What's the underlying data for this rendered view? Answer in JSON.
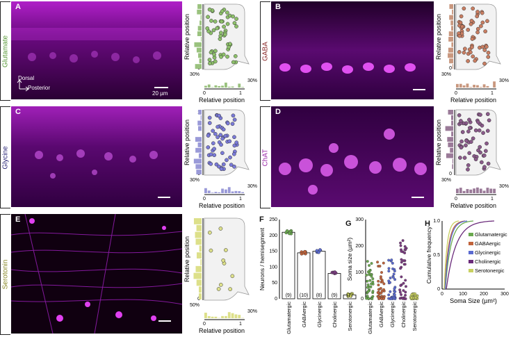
{
  "panels": [
    {
      "letter": "A",
      "marker": "Glutamate",
      "color": "#5a9a3a",
      "fill": "#8dc06a",
      "histfill": "#9ac27e"
    },
    {
      "letter": "B",
      "marker": "GABA",
      "color": "#8a2a2a",
      "fill": "#c97e62",
      "histfill": "#c9987f"
    },
    {
      "letter": "C",
      "marker": "Glycine",
      "color": "#2e2a7a",
      "fill": "#7a7ad8",
      "histfill": "#9a9ad8"
    },
    {
      "letter": "D",
      "marker": "ChAT",
      "color": "#9a2aa8",
      "fill": "#8a5a8a",
      "histfill": "#9a7a98"
    },
    {
      "letter": "E",
      "marker": "Serotonin",
      "color": "#8a8a2a",
      "fill": "#dde08a",
      "histfill": "#dde08a"
    }
  ],
  "orientation": {
    "dorsal": "Dorsal",
    "posterior": "Posterior",
    "scalebar": "20 µm"
  },
  "scatter": {
    "ylabel": "Relative position",
    "xlabel": "Relative position",
    "t0": "0",
    "t1": "1",
    "pct30": "30%",
    "pct50": "50%"
  },
  "panelF": {
    "letter": "F",
    "ylabel": "Neurons / hemisegment",
    "yticks": [
      "0",
      "50",
      "100",
      "150",
      "200",
      "250"
    ],
    "chart_data": {
      "type": "bar",
      "categories": [
        "Glutamatergic",
        "GABAergic",
        "Glycinergic",
        "Cholinergic",
        "Serotonergic"
      ],
      "values": [
        210,
        145,
        150,
        80,
        12
      ],
      "n": [
        "(9)",
        "(10)",
        "(8)",
        "(9)",
        "(7)"
      ],
      "ylim": [
        0,
        250
      ],
      "colors": [
        "#6aa84f",
        "#c0633b",
        "#5a6ad0",
        "#7a3a80",
        "#c8d060"
      ]
    }
  },
  "panelG": {
    "letter": "G",
    "ylabel": "Soma size (µm²)",
    "yticks": [
      "0",
      "100",
      "200",
      "300"
    ],
    "chart_data": {
      "type": "scatter",
      "categories": [
        "Glutamatergic",
        "GABAergic",
        "Glycinergic",
        "Cholinergic",
        "Serotonergic"
      ],
      "means": [
        45,
        35,
        40,
        55,
        25
      ],
      "ylim": [
        0,
        300
      ]
    }
  },
  "panelH": {
    "letter": "H",
    "ylabel": "Cumulative frequency",
    "xlabel": "Soma Size (µm²)",
    "yticks": [
      "0",
      "0.5",
      "1.0"
    ],
    "xticks": [
      "0",
      "100",
      "200",
      "300"
    ],
    "legend": [
      "Glutamatergic",
      "GABAergic",
      "Glycinergic",
      "Cholinergic",
      "Serotonergic"
    ],
    "colors": [
      "#6aa84f",
      "#c0633b",
      "#5a6ad0",
      "#6a2a7a",
      "#c8d060"
    ]
  }
}
